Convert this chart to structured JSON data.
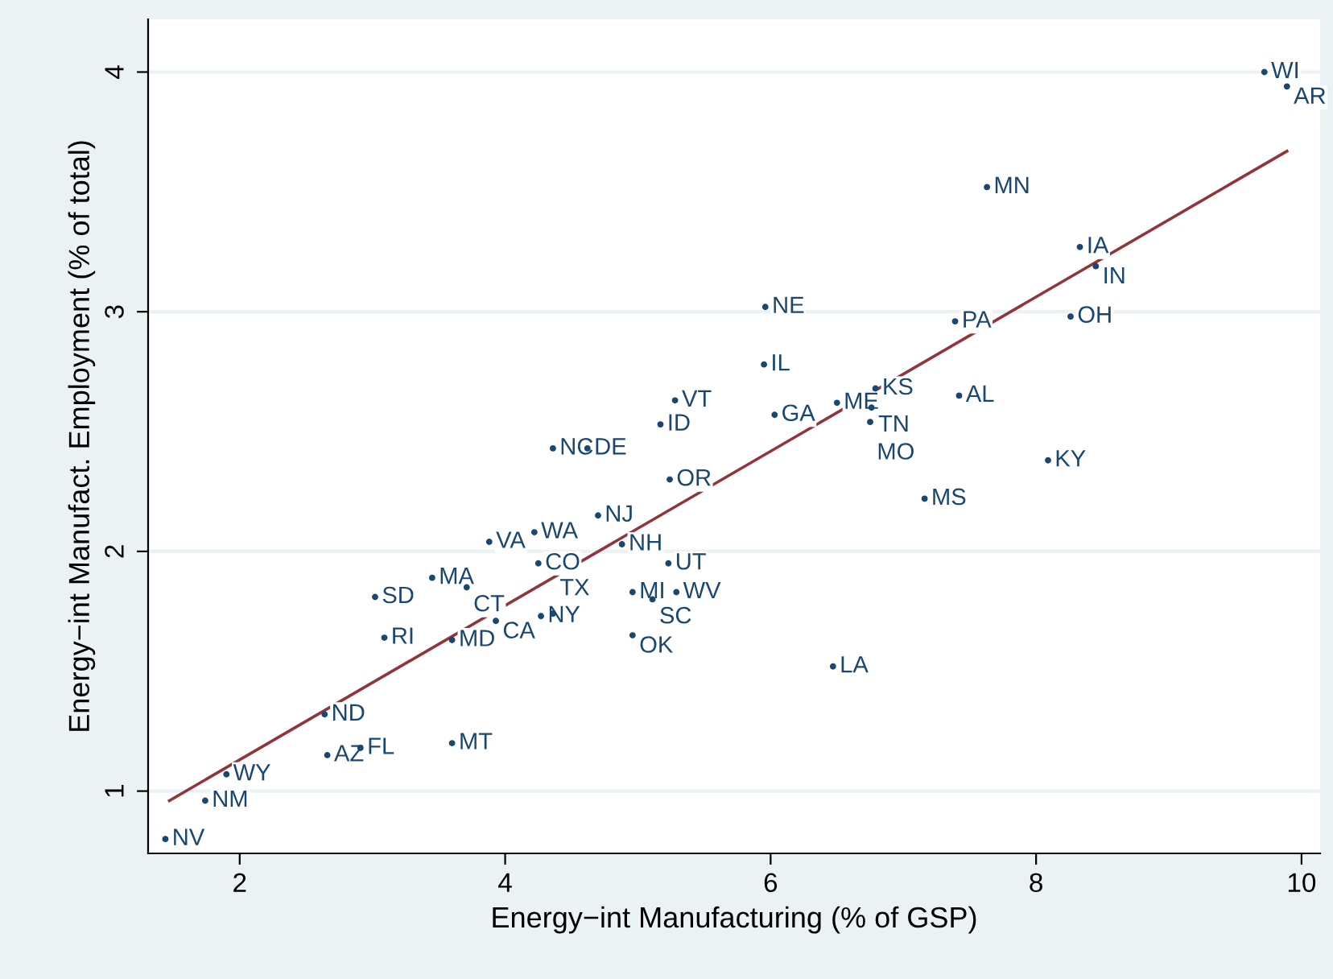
{
  "chart_data": {
    "type": "scatter",
    "xlabel": "Energy−int Manufacturing (% of GSP)",
    "ylabel": "Energy−int Manufact. Employment (% of total)",
    "xlim": [
      1.31,
      10.14
    ],
    "ylim": [
      0.74,
      4.22
    ],
    "xticks": [
      2,
      4,
      6,
      8,
      10
    ],
    "yticks": [
      1,
      2,
      3,
      4
    ],
    "grid": "y",
    "marker": "circle",
    "series": [
      {
        "color": "#1a476f",
        "x": [
          1.44,
          1.74,
          1.9,
          2.64,
          2.66,
          2.91,
          3.02,
          3.09,
          3.45,
          3.71,
          3.6,
          3.6,
          3.88,
          4.22,
          3.93,
          4.25,
          4.27,
          4.36,
          4.36,
          4.62,
          4.7,
          4.88,
          5.17,
          5.28,
          5.24,
          5.23,
          4.96,
          5.11,
          5.29,
          4.96,
          5.96,
          5.95,
          6.03,
          6.5,
          6.76,
          6.79,
          6.75,
          6.47,
          7.16,
          7.42,
          7.39,
          8.26,
          8.09,
          7.63,
          8.33,
          8.45,
          9.72,
          9.89
        ],
        "values": [
          0.8,
          0.96,
          1.07,
          1.32,
          1.15,
          1.18,
          1.81,
          1.64,
          1.89,
          1.85,
          1.63,
          1.2,
          2.04,
          2.08,
          1.71,
          1.95,
          1.73,
          1.74,
          2.43,
          2.43,
          2.15,
          2.03,
          2.53,
          2.63,
          2.3,
          1.95,
          1.83,
          1.8,
          1.83,
          1.65,
          3.02,
          2.78,
          2.57,
          2.62,
          2.6,
          2.68,
          2.54,
          1.52,
          2.22,
          2.65,
          2.96,
          2.98,
          2.38,
          3.52,
          3.27,
          3.19,
          4.0,
          3.94
        ]
      },
      {
        "type": "line",
        "color": "#90353b",
        "marker": "none",
        "x": [
          1.47,
          9.89
        ],
        "values": [
          0.96,
          3.67
        ]
      }
    ],
    "annotations": [
      {
        "text": "NV",
        "x": 1.44,
        "y": 0.8
      },
      {
        "text": "NM",
        "x": 1.74,
        "y": 0.96
      },
      {
        "text": "WY",
        "x": 1.9,
        "y": 1.07
      },
      {
        "text": "ND",
        "x": 2.64,
        "y": 1.32
      },
      {
        "text": "AZ",
        "x": 2.66,
        "y": 1.15
      },
      {
        "text": "FL",
        "x": 2.91,
        "y": 1.18
      },
      {
        "text": "SD",
        "x": 3.02,
        "y": 1.81
      },
      {
        "text": "RI",
        "x": 3.09,
        "y": 1.64
      },
      {
        "text": "MA",
        "x": 3.45,
        "y": 1.89
      },
      {
        "text": "CT",
        "x": 3.71,
        "y": 1.85
      },
      {
        "text": "MD",
        "x": 3.6,
        "y": 1.63
      },
      {
        "text": "MT",
        "x": 3.6,
        "y": 1.2
      },
      {
        "text": "VA",
        "x": 3.88,
        "y": 2.04
      },
      {
        "text": "WA",
        "x": 4.22,
        "y": 2.08
      },
      {
        "text": "CA",
        "x": 3.93,
        "y": 1.71
      },
      {
        "text": "CO",
        "x": 4.25,
        "y": 1.95
      },
      {
        "text": "NY",
        "x": 4.27,
        "y": 1.73
      },
      {
        "text": "TX",
        "x": 4.36,
        "y": 1.74
      },
      {
        "text": "NC",
        "x": 4.36,
        "y": 2.43
      },
      {
        "text": "DE",
        "x": 4.62,
        "y": 2.43
      },
      {
        "text": "NJ",
        "x": 4.7,
        "y": 2.15
      },
      {
        "text": "NH",
        "x": 4.88,
        "y": 2.03
      },
      {
        "text": "ID",
        "x": 5.17,
        "y": 2.53
      },
      {
        "text": "VT",
        "x": 5.28,
        "y": 2.63
      },
      {
        "text": "OR",
        "x": 5.24,
        "y": 2.3
      },
      {
        "text": "UT",
        "x": 5.23,
        "y": 1.95
      },
      {
        "text": "MI",
        "x": 4.96,
        "y": 1.83
      },
      {
        "text": "SC",
        "x": 5.11,
        "y": 1.8
      },
      {
        "text": "WV",
        "x": 5.29,
        "y": 1.83
      },
      {
        "text": "OK",
        "x": 4.96,
        "y": 1.65
      },
      {
        "text": "NE",
        "x": 5.96,
        "y": 3.02
      },
      {
        "text": "IL",
        "x": 5.95,
        "y": 2.78
      },
      {
        "text": "GA",
        "x": 6.03,
        "y": 2.57
      },
      {
        "text": "ME",
        "x": 6.5,
        "y": 2.62
      },
      {
        "text": "TN",
        "x": 6.76,
        "y": 2.6
      },
      {
        "text": "KS",
        "x": 6.79,
        "y": 2.68
      },
      {
        "text": "MO",
        "x": 6.75,
        "y": 2.54
      },
      {
        "text": "LA",
        "x": 6.47,
        "y": 1.52
      },
      {
        "text": "MS",
        "x": 7.16,
        "y": 2.22
      },
      {
        "text": "AL",
        "x": 7.42,
        "y": 2.65
      },
      {
        "text": "PA",
        "x": 7.39,
        "y": 2.96
      },
      {
        "text": "OH",
        "x": 8.26,
        "y": 2.98
      },
      {
        "text": "KY",
        "x": 8.09,
        "y": 2.38
      },
      {
        "text": "MN",
        "x": 7.63,
        "y": 3.52
      },
      {
        "text": "IA",
        "x": 8.33,
        "y": 3.27
      },
      {
        "text": "IN",
        "x": 8.45,
        "y": 3.19
      },
      {
        "text": "WI",
        "x": 9.72,
        "y": 4.0
      },
      {
        "text": "AR",
        "x": 9.89,
        "y": 3.94
      }
    ]
  }
}
